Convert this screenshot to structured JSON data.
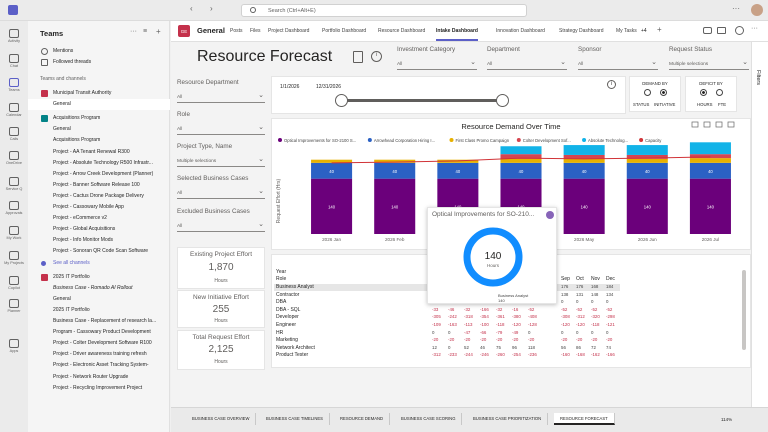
{
  "app": {
    "search_placeholder": "Search (Ctrl+Alt+E)"
  },
  "rail": [
    {
      "label": "Activity",
      "icon": "bell-icon"
    },
    {
      "label": "Chat",
      "icon": "chat-icon"
    },
    {
      "label": "Teams",
      "icon": "teams-icon"
    },
    {
      "label": "Calendar",
      "icon": "calendar-icon"
    },
    {
      "label": "Calls",
      "icon": "phone-icon"
    },
    {
      "label": "OneDrive",
      "icon": "cloud-icon"
    },
    {
      "label": "Service Q",
      "icon": "service-icon"
    },
    {
      "label": "Approvals",
      "icon": "approval-icon"
    },
    {
      "label": "My Work",
      "icon": "work-icon"
    },
    {
      "label": "My Projects",
      "icon": "projects-icon"
    },
    {
      "label": "Copilot",
      "icon": "copilot-icon"
    },
    {
      "label": "Planner",
      "icon": "planner-icon"
    },
    {
      "label": "Apps",
      "icon": "apps-icon"
    }
  ],
  "teams_panel": {
    "title": "Teams",
    "mentions": "Mentions",
    "followed": "Followed threads",
    "section": "Teams and channels",
    "items": [
      {
        "label": "Municipal Transit Authority",
        "kind": "team",
        "color": "#c4314b"
      },
      {
        "label": "General",
        "kind": "channel",
        "selected": true
      },
      {
        "label": "Acquisitions Program",
        "kind": "team",
        "color": "#038387"
      },
      {
        "label": "General",
        "kind": "channel"
      },
      {
        "label": "Acquisitions Program",
        "kind": "channel"
      },
      {
        "label": "Project - AA Tenant Renewal R300",
        "kind": "channel"
      },
      {
        "label": "Project - Absolute Technology R500 Infrastr...",
        "kind": "channel"
      },
      {
        "label": "Project - Arrow Creek Development (Planner)",
        "kind": "channel"
      },
      {
        "label": "Project - Banner Software Release 100",
        "kind": "channel"
      },
      {
        "label": "Project - Cactus Drone Package Delivery",
        "kind": "channel"
      },
      {
        "label": "Project - Cassowary Mobile App",
        "kind": "channel"
      },
      {
        "label": "Project - eCommerce v2",
        "kind": "channel"
      },
      {
        "label": "Project - Global Acquisitions",
        "kind": "channel"
      },
      {
        "label": "Project - Info Monitor Mods",
        "kind": "channel"
      },
      {
        "label": "Project - Sonoran QR Code Scan Software",
        "kind": "channel"
      },
      {
        "label": "See all channels",
        "kind": "link"
      },
      {
        "label": "2025 IT Portfolio",
        "kind": "team",
        "color": "#c4314b"
      },
      {
        "label": "Business Case - Romado AI Rollout",
        "kind": "channel",
        "italic": true
      },
      {
        "label": "General",
        "kind": "channel"
      },
      {
        "label": "2025 IT Portfolio",
        "kind": "channel"
      },
      {
        "label": "Business Case - Replacement of research la...",
        "kind": "channel"
      },
      {
        "label": "Program - Cassowary Product Development",
        "kind": "channel"
      },
      {
        "label": "Project - Colter Development Software R100",
        "kind": "channel"
      },
      {
        "label": "Project - Driver awareness training refresh",
        "kind": "channel"
      },
      {
        "label": "Project - Electronic Asset Tracking System-",
        "kind": "channel"
      },
      {
        "label": "Project - Network Router Upgrade",
        "kind": "channel"
      },
      {
        "label": "Project - Recycling Improvement Project",
        "kind": "channel"
      }
    ]
  },
  "header": {
    "badge": "GE",
    "title": "General",
    "tabs": [
      "Posts",
      "Files",
      "Project Dashboard",
      "Portfolio Dashboard",
      "Resource Dashboard",
      "Intake Dashboard",
      "Innovation Dashboard",
      "Strategy Dashboard",
      "My Tasks"
    ],
    "active_tab": "Intake Dashboard",
    "more": "+4",
    "filters_label": "Filters"
  },
  "report": {
    "title": "Resource Forecast",
    "filters": {
      "investment_category": {
        "label": "Investment Category",
        "value": "All"
      },
      "department": {
        "label": "Department",
        "value": "All"
      },
      "sponsor": {
        "label": "Sponsor",
        "value": "All"
      },
      "request_status": {
        "label": "Request Status",
        "value": "Multiple selections"
      },
      "resource_department": {
        "label": "Resource Department",
        "value": "All"
      },
      "role": {
        "label": "Role",
        "value": "All"
      },
      "project_type": {
        "label": "Project Type, Name",
        "value": "Multiple selections"
      },
      "selected_cases": {
        "label": "Selected Business Cases",
        "value": "All"
      },
      "excluded_cases": {
        "label": "Excluded Business Cases",
        "value": "All"
      }
    },
    "date_range": {
      "start": "1/1/2026",
      "end": "12/31/2026"
    },
    "demand_by": {
      "title": "DEMAND BY",
      "opt1": "STATUS",
      "opt2": "INITIATIVE",
      "selected": "INITIATIVE"
    },
    "deficit_by": {
      "title": "DEFICIT BY",
      "opt1": "HOURS",
      "opt2": "FTE",
      "selected": "HOURS"
    },
    "kpis": [
      {
        "label": "Existing Project Effort",
        "value": "1,870",
        "unit": "Hours"
      },
      {
        "label": "New Initiative Effort",
        "value": "255",
        "unit": "Hours"
      },
      {
        "label": "Total Request Effort",
        "value": "2,125",
        "unit": "Hours"
      }
    ]
  },
  "chart_data": [
    {
      "type": "bar",
      "title": "Resource Demand Over Time",
      "ylabel": "Request Effort (Hrs)",
      "categories": [
        "2026 Jan",
        "2026 Feb",
        "2026 Mar",
        "2026 Apr",
        "2026 May",
        "2026 Jun",
        "2026 Jul"
      ],
      "stacked": true,
      "series": [
        {
          "name": "Optical Improvements for SO-2100 S...",
          "color": "#6b007b",
          "values": [
            140,
            140,
            140,
            140,
            140,
            140,
            140
          ]
        },
        {
          "name": "Arrowhead Corporation Hiring I...",
          "color": "#2b61c4",
          "values": [
            40,
            40,
            40,
            40,
            40,
            40,
            40
          ]
        },
        {
          "name": "First Class Promo Campaign",
          "color": "#e8b100",
          "values": [
            8,
            8,
            8,
            10,
            10,
            10,
            12
          ]
        },
        {
          "name": "Colter Development Sof...",
          "color": "#d64550",
          "values": [
            0,
            0,
            0,
            12,
            10,
            10,
            10
          ]
        },
        {
          "name": "Absolute Technolog...",
          "color": "#12b3e8",
          "values": [
            0,
            0,
            0,
            20,
            25,
            25,
            30
          ]
        },
        {
          "name": "Capacity",
          "color": "#d13438",
          "values": [
            180,
            182,
            185,
            192,
            190,
            192,
            195
          ],
          "kind": "line"
        }
      ],
      "legend": "top",
      "grid": false
    },
    {
      "type": "pie",
      "title": "Optical Improvements for SO-210...",
      "center_value": "140",
      "center_label": "Hours",
      "slices": [
        {
          "name": "Business Analyst",
          "value": 140,
          "color": "#118dff"
        }
      ],
      "tooltip_label": "Business Analyst",
      "tooltip_value": "140"
    }
  ],
  "matrix": {
    "header_rows": [
      "Year",
      "Role"
    ],
    "months": [
      "Sep",
      "Oct",
      "Nov",
      "Dec"
    ],
    "rows": [
      {
        "role": "Business Analyst",
        "values": [
          "176",
          "176",
          "168",
          "184"
        ]
      },
      {
        "role": "Contractor",
        "values": [
          "138",
          "131",
          "148",
          "134"
        ]
      },
      {
        "role": "DBA",
        "values": [
          "0",
          "0",
          "0",
          "0"
        ]
      },
      {
        "role": "DBA - SQL",
        "values": [
          "-52",
          "-52",
          "-52",
          "-52"
        ]
      },
      {
        "role": "Developer",
        "values": [
          "-308",
          "-312",
          "-320",
          "-298"
        ]
      },
      {
        "role": "Engineer",
        "values": [
          "-120",
          "-120",
          "-118",
          "-121"
        ]
      },
      {
        "role": "HR",
        "values": [
          "0",
          "0",
          "0",
          "0"
        ]
      },
      {
        "role": "Marketing",
        "values": [
          "-20",
          "-20",
          "-20",
          "-20"
        ]
      },
      {
        "role": "Network Architect",
        "values": [
          "56",
          "86",
          "72",
          "74"
        ]
      },
      {
        "role": "Product Tester",
        "values": [
          "-160",
          "-168",
          "-162",
          "-166"
        ]
      }
    ],
    "left_cols": [
      [
        "-",
        "-",
        "-",
        "-",
        "-",
        "-",
        "-"
      ],
      [
        "-",
        "-",
        "-",
        "-",
        "-",
        "-",
        "-"
      ],
      [
        "0",
        "0",
        "0",
        "0",
        "0",
        "0",
        "0"
      ],
      [
        "-33",
        "-46",
        "-32",
        "-166",
        "-32",
        "-16",
        "-52"
      ],
      [
        "-305",
        "-242",
        "-318",
        "-354",
        "-361",
        "-380",
        "-408"
      ],
      [
        "-109",
        "-163",
        "-113",
        "-100",
        "-118",
        "-120",
        "-128"
      ],
      [
        "0",
        "0",
        "-47",
        "-66",
        "-79",
        "-49",
        "0"
      ],
      [
        "-20",
        "-20",
        "-20",
        "-20",
        "-20",
        "-20",
        "-20"
      ],
      [
        "12",
        "0",
        "52",
        "46",
        "75",
        "96",
        "118"
      ],
      [
        "-312",
        "-233",
        "-244",
        "-246",
        "-260",
        "-254",
        "-236"
      ]
    ]
  },
  "bottom_tabs": [
    "BUSINESS CASE OVERVIEW",
    "BUSINESS CASE TIMELINES",
    "RESOURCE DEMAND",
    "BUSINESS CASE SCORING",
    "BUSINESS CASE PRIORITIZATION",
    "RESOURCE FORECAST"
  ],
  "active_bottom_tab": "RESOURCE FORECAST",
  "zoom": "114%"
}
